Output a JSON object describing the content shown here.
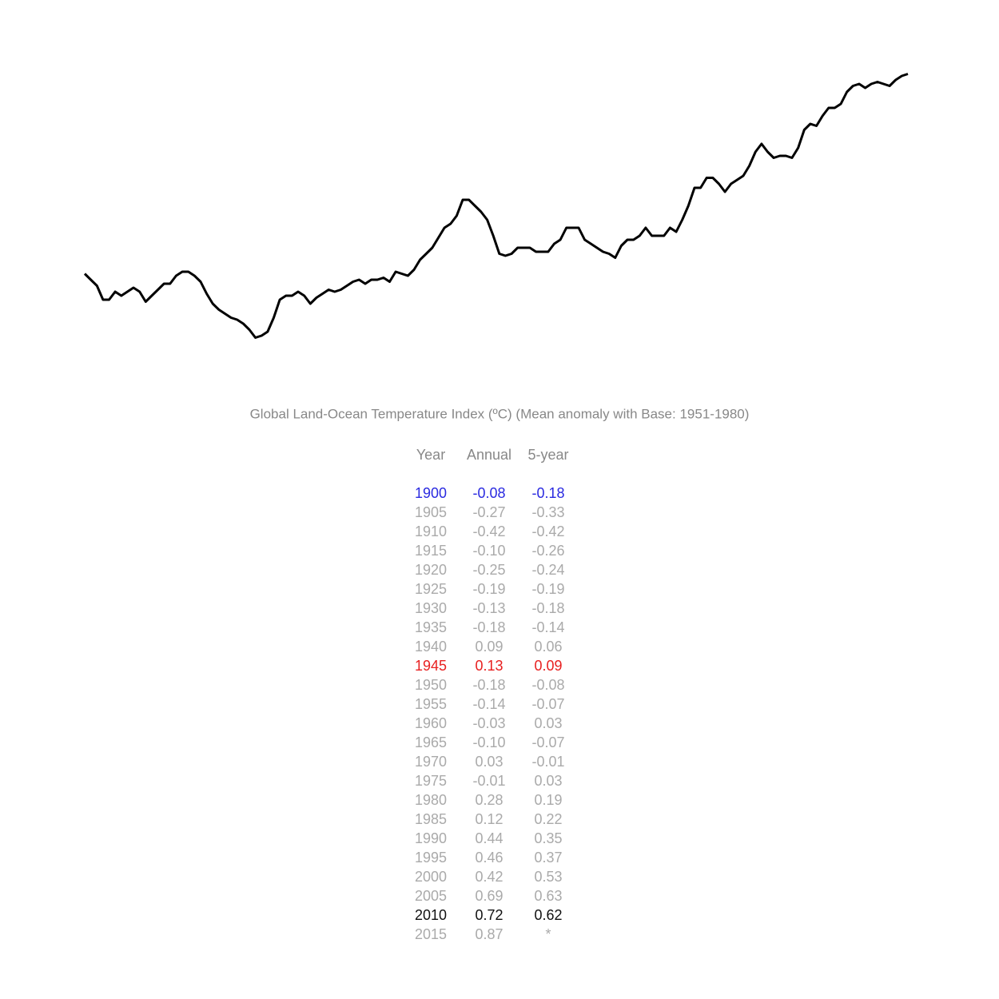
{
  "chart_data": {
    "type": "line",
    "color": "#000000",
    "xlim": [
      1880,
      2015
    ],
    "ylim": [
      -0.6,
      1.0
    ],
    "x": [
      1880,
      1881,
      1882,
      1883,
      1884,
      1885,
      1886,
      1887,
      1888,
      1889,
      1890,
      1891,
      1892,
      1893,
      1894,
      1895,
      1896,
      1897,
      1898,
      1899,
      1900,
      1901,
      1902,
      1903,
      1904,
      1905,
      1906,
      1907,
      1908,
      1909,
      1910,
      1911,
      1912,
      1913,
      1914,
      1915,
      1916,
      1917,
      1918,
      1919,
      1920,
      1921,
      1922,
      1923,
      1924,
      1925,
      1926,
      1927,
      1928,
      1929,
      1930,
      1931,
      1932,
      1933,
      1934,
      1935,
      1936,
      1937,
      1938,
      1939,
      1940,
      1941,
      1942,
      1943,
      1944,
      1945,
      1946,
      1947,
      1948,
      1949,
      1950,
      1951,
      1952,
      1953,
      1954,
      1955,
      1956,
      1957,
      1958,
      1959,
      1960,
      1961,
      1962,
      1963,
      1964,
      1965,
      1966,
      1967,
      1968,
      1969,
      1970,
      1971,
      1972,
      1973,
      1974,
      1975,
      1976,
      1977,
      1978,
      1979,
      1980,
      1981,
      1982,
      1983,
      1984,
      1985,
      1986,
      1987,
      1988,
      1989,
      1990,
      1991,
      1992,
      1993,
      1994,
      1995,
      1996,
      1997,
      1998,
      1999,
      2000,
      2001,
      2002,
      2003,
      2004,
      2005,
      2006,
      2007,
      2008,
      2009,
      2010,
      2011,
      2012,
      2013,
      2014,
      2015
    ],
    "values": [
      -0.13,
      -0.16,
      -0.19,
      -0.26,
      -0.26,
      -0.22,
      -0.24,
      -0.22,
      -0.2,
      -0.22,
      -0.27,
      -0.24,
      -0.21,
      -0.18,
      -0.18,
      -0.14,
      -0.12,
      -0.12,
      -0.14,
      -0.17,
      -0.23,
      -0.28,
      -0.31,
      -0.33,
      -0.35,
      -0.36,
      -0.38,
      -0.41,
      -0.45,
      -0.44,
      -0.42,
      -0.35,
      -0.26,
      -0.24,
      -0.24,
      -0.22,
      -0.24,
      -0.28,
      -0.25,
      -0.23,
      -0.21,
      -0.22,
      -0.21,
      -0.19,
      -0.17,
      -0.16,
      -0.18,
      -0.16,
      -0.16,
      -0.15,
      -0.17,
      -0.12,
      -0.13,
      -0.14,
      -0.11,
      -0.06,
      -0.03,
      0.0,
      0.05,
      0.1,
      0.12,
      0.16,
      0.24,
      0.24,
      0.21,
      0.18,
      0.14,
      0.06,
      -0.03,
      -0.04,
      -0.03,
      0.0,
      0.0,
      0.0,
      -0.02,
      -0.02,
      -0.02,
      0.02,
      0.04,
      0.1,
      0.1,
      0.1,
      0.04,
      0.02,
      0.0,
      -0.02,
      -0.03,
      -0.05,
      0.01,
      0.04,
      0.04,
      0.06,
      0.1,
      0.06,
      0.06,
      0.06,
      0.1,
      0.08,
      0.14,
      0.21,
      0.3,
      0.3,
      0.35,
      0.35,
      0.32,
      0.28,
      0.32,
      0.34,
      0.36,
      0.41,
      0.48,
      0.52,
      0.48,
      0.45,
      0.46,
      0.46,
      0.45,
      0.5,
      0.59,
      0.62,
      0.61,
      0.66,
      0.7,
      0.7,
      0.72,
      0.78,
      0.81,
      0.82,
      0.8,
      0.82,
      0.83,
      0.82,
      0.81,
      0.84,
      0.86,
      0.87
    ]
  },
  "table": {
    "title": "Global Land-Ocean Temperature Index (ºC) (Mean anomaly with Base: 1951-1980)",
    "columns": [
      "Year",
      "Annual",
      "5-year"
    ],
    "rows": [
      [
        "1900",
        "-0.08",
        "-0.18"
      ],
      [
        "1905",
        "-0.27",
        "-0.33"
      ],
      [
        "1910",
        "-0.42",
        "-0.42"
      ],
      [
        "1915",
        "-0.10",
        "-0.26"
      ],
      [
        "1920",
        "-0.25",
        "-0.24"
      ],
      [
        "1925",
        "-0.19",
        "-0.19"
      ],
      [
        "1930",
        "-0.13",
        "-0.18"
      ],
      [
        "1935",
        "-0.18",
        "-0.14"
      ],
      [
        "1940",
        "0.09",
        "0.06"
      ],
      [
        "1945",
        "0.13",
        "0.09"
      ],
      [
        "1950",
        "-0.18",
        "-0.08"
      ],
      [
        "1955",
        "-0.14",
        "-0.07"
      ],
      [
        "1960",
        "-0.03",
        "0.03"
      ],
      [
        "1965",
        "-0.10",
        "-0.07"
      ],
      [
        "1970",
        "0.03",
        "-0.01"
      ],
      [
        "1975",
        "-0.01",
        "0.03"
      ],
      [
        "1980",
        "0.28",
        "0.19"
      ],
      [
        "1985",
        "0.12",
        "0.22"
      ],
      [
        "1990",
        "0.44",
        "0.35"
      ],
      [
        "1995",
        "0.46",
        "0.37"
      ],
      [
        "2000",
        "0.42",
        "0.53"
      ],
      [
        "2005",
        "0.69",
        "0.63"
      ],
      [
        "2010",
        "0.72",
        "0.62"
      ],
      [
        "2015",
        "0.87",
        "*"
      ]
    ],
    "row_colors": [
      "#2a2ae0",
      "#aaaaaa",
      "#aaaaaa",
      "#aaaaaa",
      "#aaaaaa",
      "#aaaaaa",
      "#aaaaaa",
      "#aaaaaa",
      "#aaaaaa",
      "#e82020",
      "#aaaaaa",
      "#aaaaaa",
      "#aaaaaa",
      "#aaaaaa",
      "#aaaaaa",
      "#aaaaaa",
      "#aaaaaa",
      "#aaaaaa",
      "#aaaaaa",
      "#aaaaaa",
      "#aaaaaa",
      "#aaaaaa",
      "#111111",
      "#aaaaaa"
    ]
  }
}
